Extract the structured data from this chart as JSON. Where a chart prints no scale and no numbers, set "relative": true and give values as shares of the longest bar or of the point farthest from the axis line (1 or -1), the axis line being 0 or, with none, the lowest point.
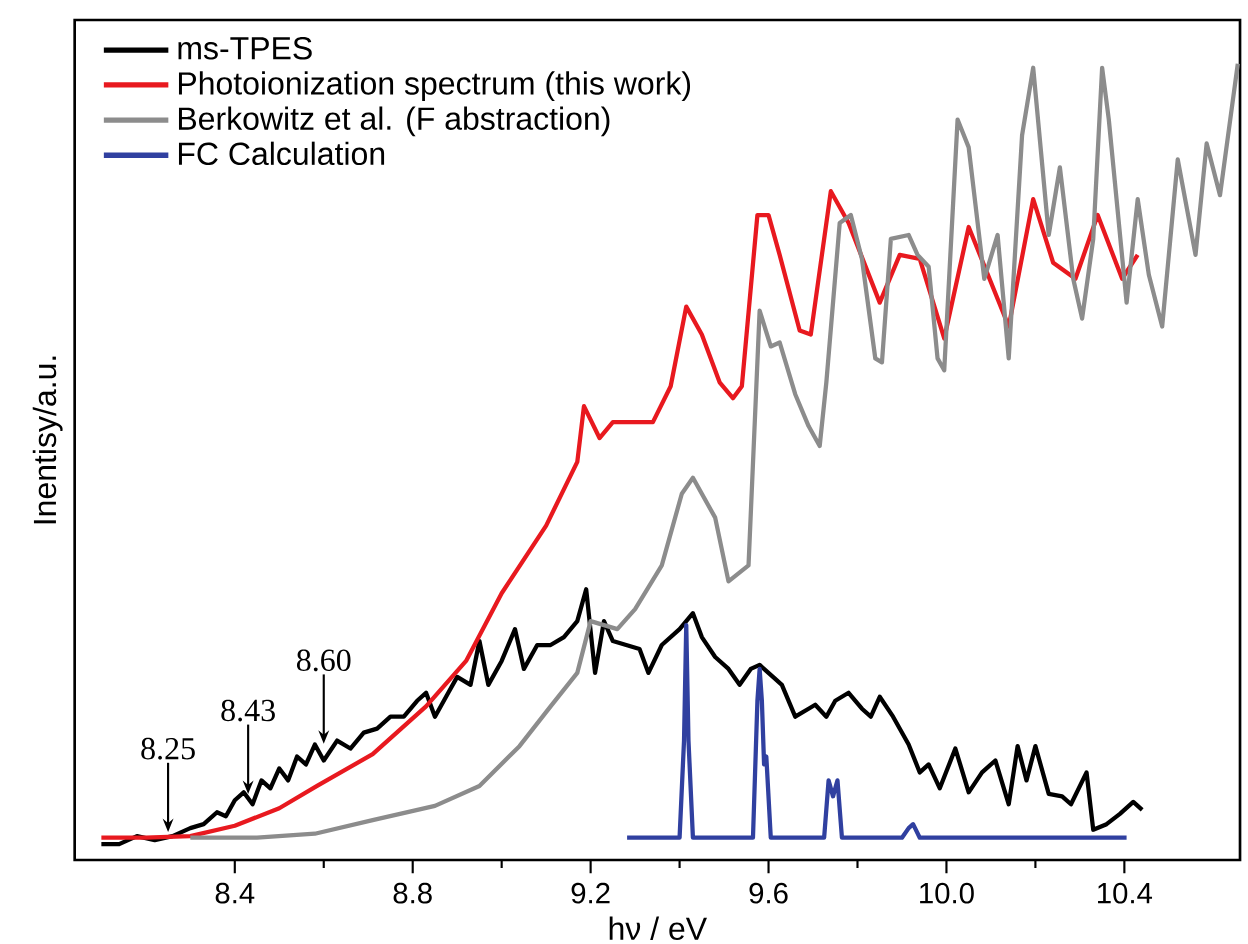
{
  "chart_data": {
    "type": "line",
    "relative": true,
    "xlabel": "hν / eV",
    "ylabel": "Inentisy/a.u.",
    "xlim": [
      8.04,
      10.66
    ],
    "xticks": [
      8.4,
      8.8,
      9.2,
      9.6,
      {
        "value": 10.0,
        "label": "10.0"
      },
      10.4
    ],
    "legend": "top left",
    "annotations": [
      {
        "text": "8.25",
        "x": 8.25,
        "y": 0.035
      },
      {
        "text": "8.43",
        "x": 8.43,
        "y": 0.083
      },
      {
        "text": "8.60",
        "x": 8.6,
        "y": 0.146
      }
    ],
    "series": [
      {
        "name": "ms-TPES",
        "color": "#000000",
        "x": [
          8.1,
          8.14,
          8.18,
          8.22,
          8.26,
          8.3,
          8.33,
          8.36,
          8.38,
          8.4,
          8.42,
          8.44,
          8.46,
          8.48,
          8.5,
          8.52,
          8.54,
          8.56,
          8.58,
          8.6,
          8.63,
          8.66,
          8.69,
          8.72,
          8.75,
          8.78,
          8.81,
          8.83,
          8.85,
          8.88,
          8.9,
          8.93,
          8.95,
          8.97,
          9.0,
          9.03,
          9.05,
          9.08,
          9.11,
          9.14,
          9.17,
          9.19,
          9.21,
          9.23,
          9.25,
          9.28,
          9.31,
          9.33,
          9.36,
          9.4,
          9.43,
          9.45,
          9.48,
          9.51,
          9.535,
          9.56,
          9.58,
          9.61,
          9.63,
          9.66,
          9.69,
          9.705,
          9.73,
          9.75,
          9.78,
          9.81,
          9.83,
          9.85,
          9.88,
          9.915,
          9.94,
          9.96,
          9.985,
          10.02,
          10.05,
          10.08,
          10.11,
          10.14,
          10.16,
          10.18,
          10.2,
          10.23,
          10.26,
          10.28,
          10.315,
          10.33,
          10.36,
          10.39,
          10.42,
          10.44
        ],
        "values": [
          0.02,
          0.02,
          0.03,
          0.025,
          0.03,
          0.04,
          0.045,
          0.06,
          0.055,
          0.075,
          0.085,
          0.07,
          0.1,
          0.09,
          0.115,
          0.1,
          0.13,
          0.12,
          0.145,
          0.125,
          0.15,
          0.14,
          0.16,
          0.165,
          0.18,
          0.18,
          0.2,
          0.21,
          0.18,
          0.21,
          0.23,
          0.22,
          0.275,
          0.22,
          0.25,
          0.29,
          0.24,
          0.27,
          0.27,
          0.28,
          0.3,
          0.34,
          0.235,
          0.3,
          0.275,
          0.27,
          0.265,
          0.235,
          0.27,
          0.29,
          0.31,
          0.28,
          0.255,
          0.24,
          0.22,
          0.24,
          0.245,
          0.23,
          0.22,
          0.18,
          0.19,
          0.195,
          0.18,
          0.2,
          0.21,
          0.19,
          0.18,
          0.205,
          0.18,
          0.145,
          0.11,
          0.12,
          0.09,
          0.14,
          0.085,
          0.11,
          0.125,
          0.07,
          0.143,
          0.1,
          0.143,
          0.083,
          0.08,
          0.07,
          0.11,
          0.038,
          0.045,
          0.058,
          0.073,
          0.063
        ]
      },
      {
        "name": "Photoionization spectrum (this work)",
        "color": "#e8191f",
        "x": [
          8.1,
          8.2,
          8.3,
          8.4,
          8.5,
          8.585,
          8.71,
          8.83,
          8.92,
          9.0,
          9.1,
          9.17,
          9.185,
          9.22,
          9.25,
          9.34,
          9.38,
          9.415,
          9.45,
          9.49,
          9.52,
          9.54,
          9.575,
          9.6,
          9.625,
          9.67,
          9.695,
          9.74,
          9.78,
          9.85,
          9.895,
          9.94,
          9.995,
          10.05,
          10.14,
          10.195,
          10.24,
          10.29,
          10.34,
          10.395,
          10.43
        ],
        "values": [
          0.028,
          0.028,
          0.03,
          0.043,
          0.065,
          0.093,
          0.133,
          0.193,
          0.25,
          0.335,
          0.42,
          0.5,
          0.57,
          0.53,
          0.55,
          0.55,
          0.595,
          0.695,
          0.66,
          0.6,
          0.58,
          0.595,
          0.81,
          0.81,
          0.76,
          0.665,
          0.66,
          0.84,
          0.8,
          0.7,
          0.76,
          0.755,
          0.655,
          0.795,
          0.67,
          0.83,
          0.75,
          0.73,
          0.81,
          0.73,
          0.76
        ]
      },
      {
        "name": "Berkowitz et al. (F abstraction)",
        "color": "#8c8c8c",
        "x": [
          8.3,
          8.45,
          8.58,
          8.71,
          8.85,
          8.95,
          9.04,
          9.11,
          9.17,
          9.2,
          9.26,
          9.3,
          9.36,
          9.405,
          9.43,
          9.48,
          9.51,
          9.555,
          9.58,
          9.605,
          9.625,
          9.66,
          9.69,
          9.715,
          9.73,
          9.76,
          9.785,
          9.81,
          9.84,
          9.855,
          9.875,
          9.915,
          9.935,
          9.96,
          9.98,
          9.995,
          10.025,
          10.05,
          10.085,
          10.115,
          10.14,
          10.17,
          10.195,
          10.23,
          10.255,
          10.285,
          10.305,
          10.33,
          10.35,
          10.365,
          10.405,
          10.43,
          10.455,
          10.485,
          10.52,
          10.56,
          10.585,
          10.615,
          10.655
        ],
        "values": [
          0.028,
          0.028,
          0.033,
          0.05,
          0.068,
          0.093,
          0.143,
          0.193,
          0.235,
          0.3,
          0.29,
          0.315,
          0.37,
          0.46,
          0.48,
          0.43,
          0.35,
          0.37,
          0.69,
          0.645,
          0.65,
          0.585,
          0.545,
          0.52,
          0.6,
          0.8,
          0.81,
          0.755,
          0.63,
          0.625,
          0.78,
          0.785,
          0.76,
          0.745,
          0.63,
          0.615,
          0.93,
          0.895,
          0.73,
          0.785,
          0.63,
          0.91,
          0.995,
          0.785,
          0.87,
          0.73,
          0.68,
          0.78,
          0.995,
          0.93,
          0.7,
          0.83,
          0.735,
          0.67,
          0.88,
          0.76,
          0.9,
          0.835,
          1.0
        ]
      },
      {
        "name": "FC Calculation",
        "color": "#3040a0",
        "x": [
          9.282,
          9.4,
          9.41,
          9.415,
          9.42,
          9.43,
          9.565,
          9.575,
          9.58,
          9.585,
          9.59,
          9.595,
          9.605,
          9.725,
          9.735,
          9.745,
          9.755,
          9.765,
          9.9,
          9.915,
          9.925,
          9.94,
          10.405
        ],
        "values": [
          0.028,
          0.028,
          0.15,
          0.295,
          0.15,
          0.028,
          0.028,
          0.2,
          0.24,
          0.2,
          0.12,
          0.13,
          0.028,
          0.028,
          0.1,
          0.08,
          0.1,
          0.028,
          0.028,
          0.04,
          0.045,
          0.028,
          0.028
        ]
      }
    ]
  }
}
